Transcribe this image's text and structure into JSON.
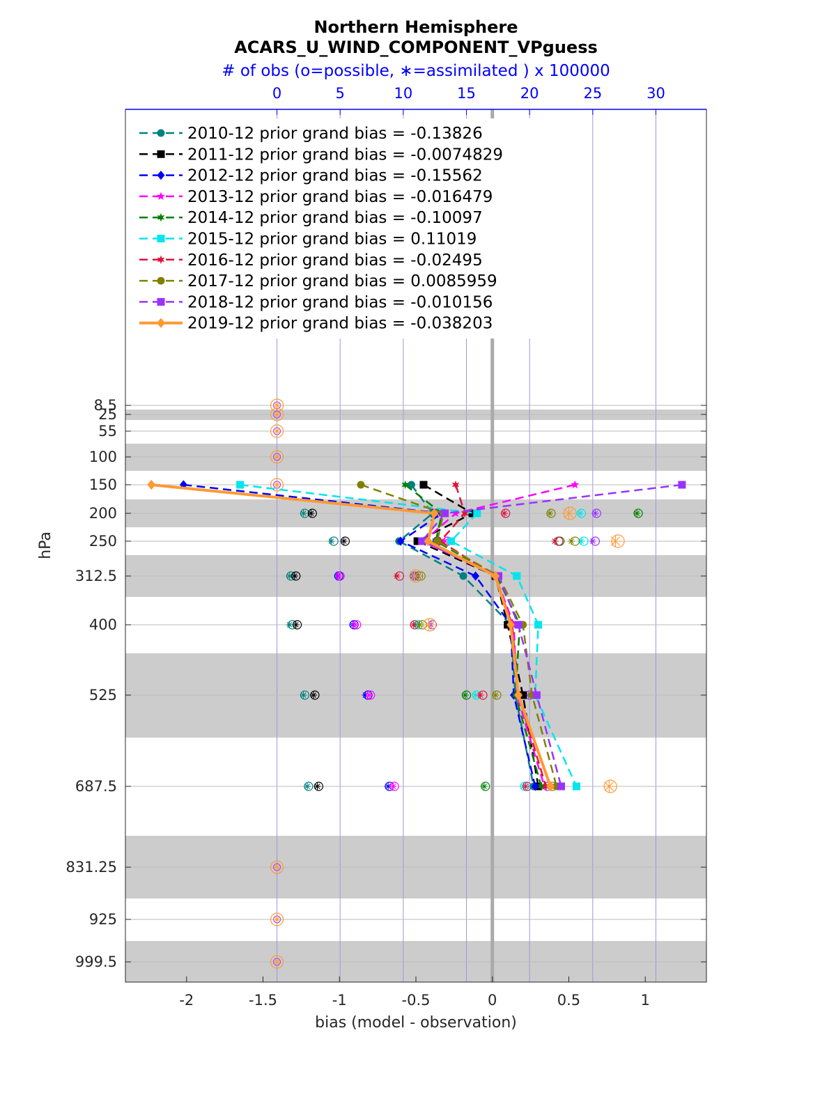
{
  "chart_data": {
    "type": "line",
    "title": "Northern Hemisphere",
    "subtitle": "ACARS_U_WIND_COMPONENT_VPguess",
    "top_axis_label": "# of obs (o=possible, ∗=assimilated ) x 100000",
    "xlabel": "bias (model - observation)",
    "ylabel": "hPa",
    "xlim": [
      -2.4,
      1.4
    ],
    "top_xlim": [
      -12,
      34
    ],
    "x_ticks": [
      "-2",
      "-1.5",
      "-1",
      "-0.5",
      "0",
      "0.5",
      "1"
    ],
    "top_ticks": [
      "0",
      "5",
      "10",
      "15",
      "20",
      "25",
      "30"
    ],
    "levels": [
      8.5,
      25,
      55,
      100,
      150,
      200,
      250,
      312.5,
      400,
      525,
      687.5,
      831.25,
      925,
      999.5
    ],
    "level_labels": [
      "8.5",
      "25",
      "55",
      "100",
      "150",
      "200",
      "250",
      "312.5",
      "400",
      "525",
      "687.5",
      "831.25",
      "925",
      "999.5"
    ],
    "bias_levels": [
      150,
      200,
      250,
      312.5,
      400,
      525,
      687.5
    ],
    "y_scale": "log",
    "grid": true,
    "legend_position": "top-left",
    "series": [
      {
        "name": "2010-12 prior grand bias = -0.13826",
        "color": "#008080",
        "marker": "circle",
        "bias": [
          -0.53,
          -0.39,
          -0.61,
          -0.19,
          0.12,
          0.15,
          0.27
        ],
        "possible": [
          null,
          2.2,
          4.5,
          1.1,
          1.2,
          2.2,
          2.5
        ],
        "assimilated": [
          null,
          2.1,
          4.3,
          1.0,
          1.0,
          2.1,
          2.4
        ]
      },
      {
        "name": "2011-12 prior grand bias = -0.0074829",
        "color": "#000000",
        "marker": "square",
        "bias": [
          -0.45,
          -0.13,
          -0.49,
          0.02,
          0.1,
          0.2,
          0.3
        ],
        "possible": [
          null,
          2.8,
          5.4,
          1.5,
          1.6,
          3.0,
          3.3
        ],
        "assimilated": [
          null,
          2.7,
          5.3,
          1.4,
          1.5,
          2.9,
          3.2
        ]
      },
      {
        "name": "2012-12 prior grand bias = -0.15562",
        "color": "#0000ff",
        "marker": "diamond",
        "bias": [
          -2.02,
          -0.33,
          -0.6,
          -0.11,
          0.12,
          0.14,
          0.28
        ],
        "possible": [
          null,
          12.4,
          12.7,
          4.9,
          6.1,
          7.2,
          8.9
        ],
        "assimilated": [
          null,
          12.3,
          12.5,
          4.8,
          6.0,
          7.0,
          8.8
        ]
      },
      {
        "name": "2013-12 prior grand bias = -0.016479",
        "color": "#ff00ff",
        "marker": "star",
        "bias": [
          0.54,
          -0.24,
          -0.45,
          0.02,
          0.14,
          0.16,
          0.34
        ],
        "possible": [
          null,
          12.6,
          13.5,
          5.0,
          6.3,
          7.4,
          9.3
        ],
        "assimilated": [
          null,
          12.5,
          13.3,
          4.9,
          6.2,
          7.3,
          9.2
        ]
      },
      {
        "name": "2014-12 prior grand bias = -0.10097",
        "color": "#008000",
        "marker": "hexagram",
        "bias": [
          -0.57,
          -0.33,
          -0.37,
          0.03,
          0.18,
          0.15,
          0.32
        ],
        "possible": [
          null,
          28.6,
          22.4,
          11.2,
          11.2,
          15.0,
          16.5
        ],
        "assimilated": [
          null,
          28.5,
          22.0,
          11.0,
          11.0,
          14.9,
          16.4
        ]
      },
      {
        "name": "2015-12 prior grand bias = 0.11019",
        "color": "#00e5ee",
        "marker": "square",
        "bias": [
          -1.65,
          -0.1,
          -0.27,
          0.16,
          0.3,
          0.28,
          0.55
        ],
        "possible": [
          null,
          24.1,
          24.3,
          10.9,
          11.2,
          15.8,
          19.6
        ],
        "assimilated": [
          null,
          24.0,
          24.1,
          10.7,
          11.1,
          15.7,
          19.5
        ]
      },
      {
        "name": "2016-12 prior grand bias = -0.02495",
        "color": "#dc143c",
        "marker": "hexagram",
        "bias": [
          -0.24,
          -0.18,
          -0.34,
          0.02,
          0.13,
          0.17,
          0.35
        ],
        "possible": [
          null,
          18.1,
          22.3,
          9.7,
          10.9,
          16.3,
          19.8
        ],
        "assimilated": [
          null,
          18.0,
          22.0,
          9.5,
          10.8,
          16.1,
          19.7
        ]
      },
      {
        "name": "2017-12 prior grand bias = 0.0085959",
        "color": "#808000",
        "marker": "circle",
        "bias": [
          -0.86,
          -0.32,
          -0.36,
          0.04,
          0.2,
          0.26,
          0.42
        ],
        "possible": [
          null,
          21.7,
          23.6,
          11.4,
          11.5,
          17.4,
          21.8
        ],
        "assimilated": [
          null,
          21.6,
          23.3,
          11.2,
          11.3,
          17.3,
          21.7
        ]
      },
      {
        "name": "2018-12 prior grand bias = -0.010156",
        "color": "#9933ff",
        "marker": "square",
        "bias": [
          1.24,
          -0.31,
          -0.46,
          0.04,
          0.17,
          0.29,
          0.45
        ],
        "possible": [
          null,
          25.3,
          25.2,
          10.9,
          12.3,
          20.0,
          21.4
        ],
        "assimilated": [
          null,
          25.2,
          25.0,
          10.8,
          12.2,
          19.9,
          21.3
        ]
      },
      {
        "name": "2019-12 prior grand bias = -0.038203",
        "color": "#ff9933",
        "marker": "diamond",
        "bias": [
          -2.23,
          -0.38,
          -0.42,
          0.02,
          0.12,
          0.17,
          0.38
        ],
        "possible": [
          null,
          23.2,
          27.0,
          11.0,
          12.1,
          null,
          26.4
        ],
        "assimilated": [
          null,
          23.1,
          26.8,
          10.9,
          12.0,
          null,
          26.3
        ]
      }
    ],
    "zero_count_levels": [
      8.5,
      25,
      55,
      100,
      150,
      831.25,
      925,
      999.5
    ]
  }
}
